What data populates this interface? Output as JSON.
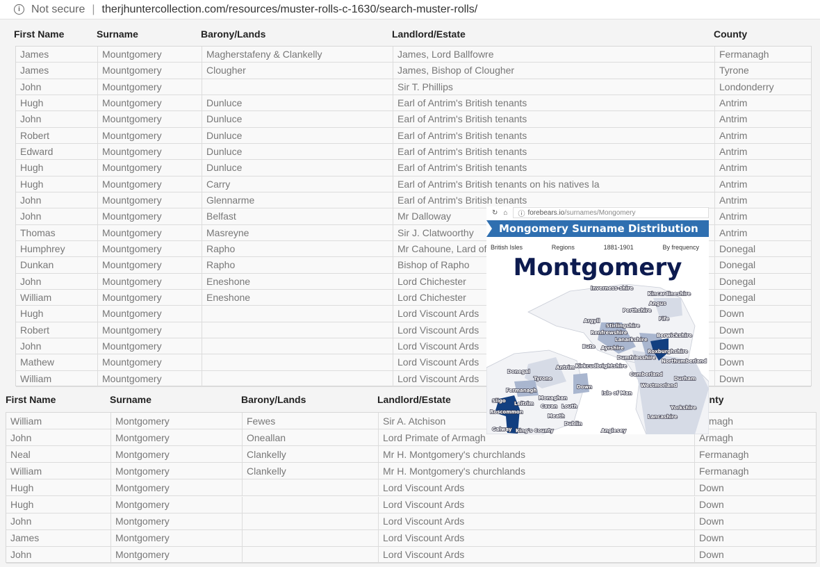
{
  "browser": {
    "security_label": "Not secure",
    "url": "therjhuntercollection.com/resources/muster-rolls-c-1630/search-muster-rolls/"
  },
  "table1": {
    "headers": [
      "First Name",
      "Surname",
      "Barony/Lands",
      "Landlord/Estate",
      "County"
    ],
    "rows": [
      [
        "James",
        "Mountgomery",
        "Magherstafeny & Clankelly",
        "James, Lord Ballfowre",
        "Fermanagh"
      ],
      [
        "James",
        "Mountgomery",
        "Clougher",
        "James, Bishop of Clougher",
        "Tyrone"
      ],
      [
        "John",
        "Mountgomery",
        "",
        "Sir T. Phillips",
        "Londonderry"
      ],
      [
        "Hugh",
        "Mountgomery",
        "Dunluce",
        "Earl of Antrim's British tenants",
        "Antrim"
      ],
      [
        "John",
        "Mountgomery",
        "Dunluce",
        "Earl of Antrim's British tenants",
        "Antrim"
      ],
      [
        "Robert",
        "Mountgomery",
        "Dunluce",
        "Earl of Antrim's British tenants",
        "Antrim"
      ],
      [
        "Edward",
        "Mountgomery",
        "Dunluce",
        "Earl of Antrim's British tenants",
        "Antrim"
      ],
      [
        "Hugh",
        "Mountgomery",
        "Dunluce",
        "Earl of Antrim's British tenants",
        "Antrim"
      ],
      [
        "Hugh",
        "Mountgomery",
        "Carry",
        "Earl of Antrim's British tenants on his natives la",
        "Antrim"
      ],
      [
        "John",
        "Mountgomery",
        "Glennarme",
        "Earl of Antrim's British tenants",
        "Antrim"
      ],
      [
        "John",
        "Mountgomery",
        "Belfast",
        "Mr Dalloway",
        "Antrim"
      ],
      [
        "Thomas",
        "Mountgomery",
        "Masreyne",
        "Sir J. Clatwoorthy",
        "Antrim"
      ],
      [
        "Humphrey",
        "Mountgomery",
        "Rapho",
        "Mr Cahoune, Lard of",
        "Donegal"
      ],
      [
        "Dunkan",
        "Mountgomery",
        "Rapho",
        "Bishop of Rapho",
        "Donegal"
      ],
      [
        "John",
        "Mountgomery",
        "Eneshone",
        "Lord Chichester",
        "Donegal"
      ],
      [
        "William",
        "Mountgomery",
        "Eneshone",
        "Lord Chichester",
        "Donegal"
      ],
      [
        "Hugh",
        "Mountgomery",
        "",
        "Lord Viscount Ards",
        "Down"
      ],
      [
        "Robert",
        "Mountgomery",
        "",
        "Lord Viscount Ards",
        "Down"
      ],
      [
        "John",
        "Mountgomery",
        "",
        "Lord Viscount Ards",
        "Down"
      ],
      [
        "Mathew",
        "Mountgomery",
        "",
        "Lord Viscount Ards",
        "Down"
      ],
      [
        "William",
        "Mountgomery",
        "",
        "Lord Viscount Ards",
        "Down"
      ]
    ]
  },
  "table2": {
    "headers": [
      "First Name",
      "Surname",
      "Barony/Lands",
      "Landlord/Estate",
      "unty"
    ],
    "rows": [
      [
        "William",
        "Montgomery",
        "Fewes",
        "Sir A. Atchison",
        "Armagh"
      ],
      [
        "John",
        "Montgomery",
        "Oneallan",
        "Lord Primate of Armagh",
        "Armagh"
      ],
      [
        "Neal",
        "Montgomery",
        "Clankelly",
        "Mr H. Montgomery's churchlands",
        "Fermanagh"
      ],
      [
        "William",
        "Montgomery",
        "Clankelly",
        "Mr H. Montgomery's churchlands",
        "Fermanagh"
      ],
      [
        "Hugh",
        "Montgomery",
        "",
        "Lord Viscount Ards",
        "Down"
      ],
      [
        "Hugh",
        "Montgomery",
        "",
        "Lord Viscount Ards",
        "Down"
      ],
      [
        "John",
        "Montgomery",
        "",
        "Lord Viscount Ards",
        "Down"
      ],
      [
        "James",
        "Montgomery",
        "",
        "Lord Viscount Ards",
        "Down"
      ],
      [
        "John",
        "Montgomery",
        "",
        "Lord Viscount Ards",
        "Down"
      ]
    ]
  },
  "inset": {
    "url_domain": "forebears.io",
    "url_path": "/surnames/Mongomery",
    "banner": "Mongomery Surname Distribution",
    "tabs": [
      "British Isles",
      "Regions",
      "1881-1901",
      "By frequency"
    ],
    "overlay_name": "Montgomery",
    "colors": {
      "banner": "#2f6fb0",
      "high": "#123f80",
      "mid": "#a9b6cf",
      "low": "#d6dbe6"
    },
    "map_labels": [
      "Inverness-shire",
      "Kincardineshire",
      "Angus",
      "Perthshire",
      "Fife",
      "Argyll",
      "Stirlingshire",
      "Renfrewshire",
      "Lanarkshire",
      "Berwickshire",
      "Bute",
      "Ayrshire",
      "Roxburghshire",
      "Dumfriesshire",
      "Northumberland",
      "Kirkcudbrightshire",
      "Donegal",
      "Antrim",
      "Tyrone",
      "Down",
      "Cumberland",
      "Durham",
      "Westmorland",
      "Fermanagh",
      "Monaghan",
      "Isle of Man",
      "Sligo",
      "Leitrim",
      "Cavan",
      "Louth",
      "Roscommon",
      "Yorkshire",
      "Meath",
      "Lancashire",
      "Dublin",
      "Galway",
      "King's County",
      "Anglesey"
    ]
  }
}
